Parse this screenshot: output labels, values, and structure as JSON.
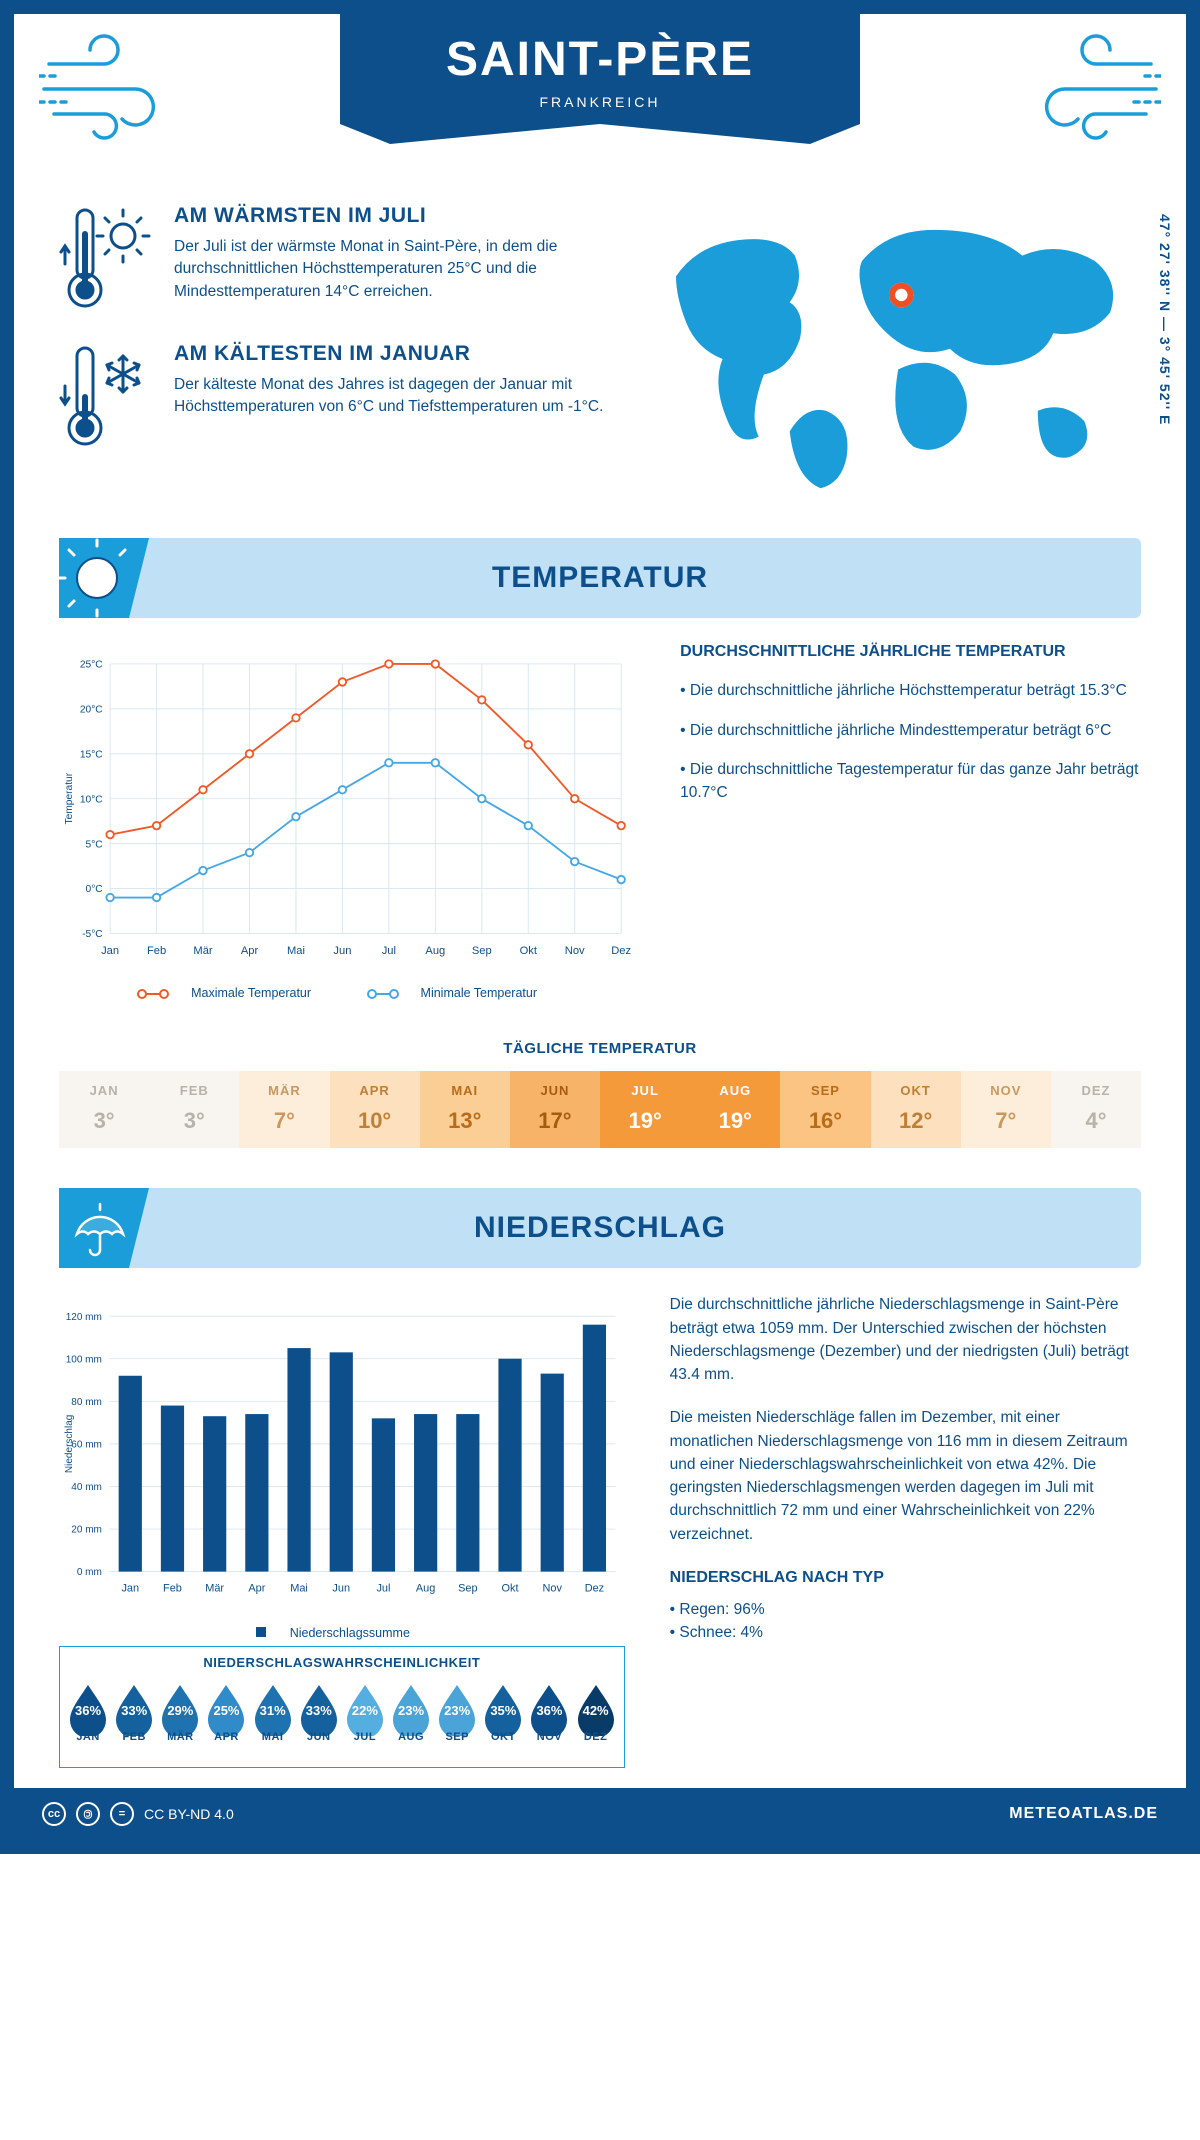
{
  "header": {
    "title": "SAINT-PÈRE",
    "subtitle": "FRANKREICH",
    "coords": "47° 27' 38'' N — 3° 45' 52'' E",
    "banner_color": "#0d4f8b",
    "accent_blue": "#1a9dd9",
    "light_blue_bg": "#bfe0f5"
  },
  "facts": {
    "warm": {
      "title": "AM WÄRMSTEN IM JULI",
      "text": "Der Juli ist der wärmste Monat in Saint-Père, in dem die durchschnittlichen Höchsttemperaturen 25°C und die Mindesttemperaturen 14°C erreichen."
    },
    "cold": {
      "title": "AM KÄLTESTEN IM JANUAR",
      "text": "Der kälteste Monat des Jahres ist dagegen der Januar mit Höchsttemperaturen von 6°C und Tiefsttemperaturen um -1°C."
    }
  },
  "temp_section": {
    "title": "TEMPERATUR",
    "chart": {
      "type": "line",
      "months": [
        "Jan",
        "Feb",
        "Mär",
        "Apr",
        "Mai",
        "Jun",
        "Jul",
        "Aug",
        "Sep",
        "Okt",
        "Nov",
        "Dez"
      ],
      "max_series": {
        "label": "Maximale Temperatur",
        "color": "#f05a28",
        "values": [
          6,
          7,
          11,
          15,
          19,
          23,
          25,
          25,
          21,
          16,
          10,
          7
        ]
      },
      "min_series": {
        "label": "Minimale Temperatur",
        "color": "#45a7e6",
        "values": [
          -1,
          -1,
          2,
          4,
          8,
          11,
          14,
          14,
          10,
          7,
          3,
          1
        ]
      },
      "ylim": [
        -5,
        25
      ],
      "ytick_step": 5,
      "ylabel": "Temperatur",
      "grid_color": "#d8e6f0",
      "marker": "circle",
      "line_width": 2
    },
    "summary": {
      "title": "DURCHSCHNITTLICHE JÄHRLICHE TEMPERATUR",
      "b1": "• Die durchschnittliche jährliche Höchsttemperatur beträgt 15.3°C",
      "b2": "• Die durchschnittliche jährliche Mindesttemperatur beträgt 6°C",
      "b3": "• Die durchschnittliche Tagestemperatur für das ganze Jahr beträgt 10.7°C"
    },
    "daily": {
      "title": "TÄGLICHE TEMPERATUR",
      "months": [
        "JAN",
        "FEB",
        "MÄR",
        "APR",
        "MAI",
        "JUN",
        "JUL",
        "AUG",
        "SEP",
        "OKT",
        "NOV",
        "DEZ"
      ],
      "values": [
        "3°",
        "3°",
        "7°",
        "10°",
        "13°",
        "17°",
        "19°",
        "19°",
        "16°",
        "12°",
        "7°",
        "4°"
      ],
      "bg_colors": [
        "#f8f4ef",
        "#f8f4ef",
        "#fdeedb",
        "#fde0bd",
        "#fbce96",
        "#f7b469",
        "#f59a3b",
        "#f59a3b",
        "#fbc483",
        "#fde0bd",
        "#fdeedb",
        "#f8f4ef"
      ],
      "text_colors": [
        "#b8b2a8",
        "#b8b2a8",
        "#c89860",
        "#c07f36",
        "#b86c1a",
        "#a65c0f",
        "#ffffff",
        "#ffffff",
        "#b86c1a",
        "#c07f36",
        "#c89860",
        "#b8b2a8"
      ]
    }
  },
  "precip_section": {
    "title": "NIEDERSCHLAG",
    "chart": {
      "type": "bar",
      "months": [
        "Jan",
        "Feb",
        "Mär",
        "Apr",
        "Mai",
        "Jun",
        "Jul",
        "Aug",
        "Sep",
        "Okt",
        "Nov",
        "Dez"
      ],
      "values": [
        92,
        78,
        73,
        74,
        105,
        103,
        72,
        74,
        74,
        100,
        93,
        116
      ],
      "bar_color": "#0d4f8b",
      "ylim": [
        0,
        120
      ],
      "ytick_step": 20,
      "ylabel": "Niederschlag",
      "legend": "Niederschlagssumme",
      "grid_color": "#d8e6f0",
      "bar_width": 0.55
    },
    "text": {
      "p1": "Die durchschnittliche jährliche Niederschlagsmenge in Saint-Père beträgt etwa 1059 mm. Der Unterschied zwischen der höchsten Niederschlagsmenge (Dezember) und der niedrigsten (Juli) beträgt 43.4 mm.",
      "p2": "Die meisten Niederschläge fallen im Dezember, mit einer monatlichen Niederschlagsmenge von 116 mm in diesem Zeitraum und einer Niederschlagswahrscheinlichkeit von etwa 42%. Die geringsten Niederschlagsmengen werden dagegen im Juli mit durchschnittlich 72 mm und einer Wahrscheinlichkeit von 22% verzeichnet.",
      "type_title": "NIEDERSCHLAG NACH TYP",
      "type1": "• Regen: 96%",
      "type2": "• Schnee: 4%"
    },
    "probability": {
      "title": "NIEDERSCHLAGSWAHRSCHEINLICHKEIT",
      "months": [
        "JAN",
        "FEB",
        "MÄR",
        "APR",
        "MAI",
        "JUN",
        "JUL",
        "AUG",
        "SEP",
        "OKT",
        "NOV",
        "DEZ"
      ],
      "values": [
        "36%",
        "33%",
        "29%",
        "25%",
        "31%",
        "33%",
        "22%",
        "23%",
        "23%",
        "35%",
        "36%",
        "42%"
      ],
      "colors": [
        "#0d4f8b",
        "#15619e",
        "#1e72b0",
        "#2f8cc9",
        "#1e72b0",
        "#15619e",
        "#55aee0",
        "#4aa4d8",
        "#4aa4d8",
        "#15619e",
        "#0d4f8b",
        "#093b69"
      ]
    }
  },
  "footer": {
    "license": "CC BY-ND 4.0",
    "site": "METEOATLAS.DE"
  }
}
